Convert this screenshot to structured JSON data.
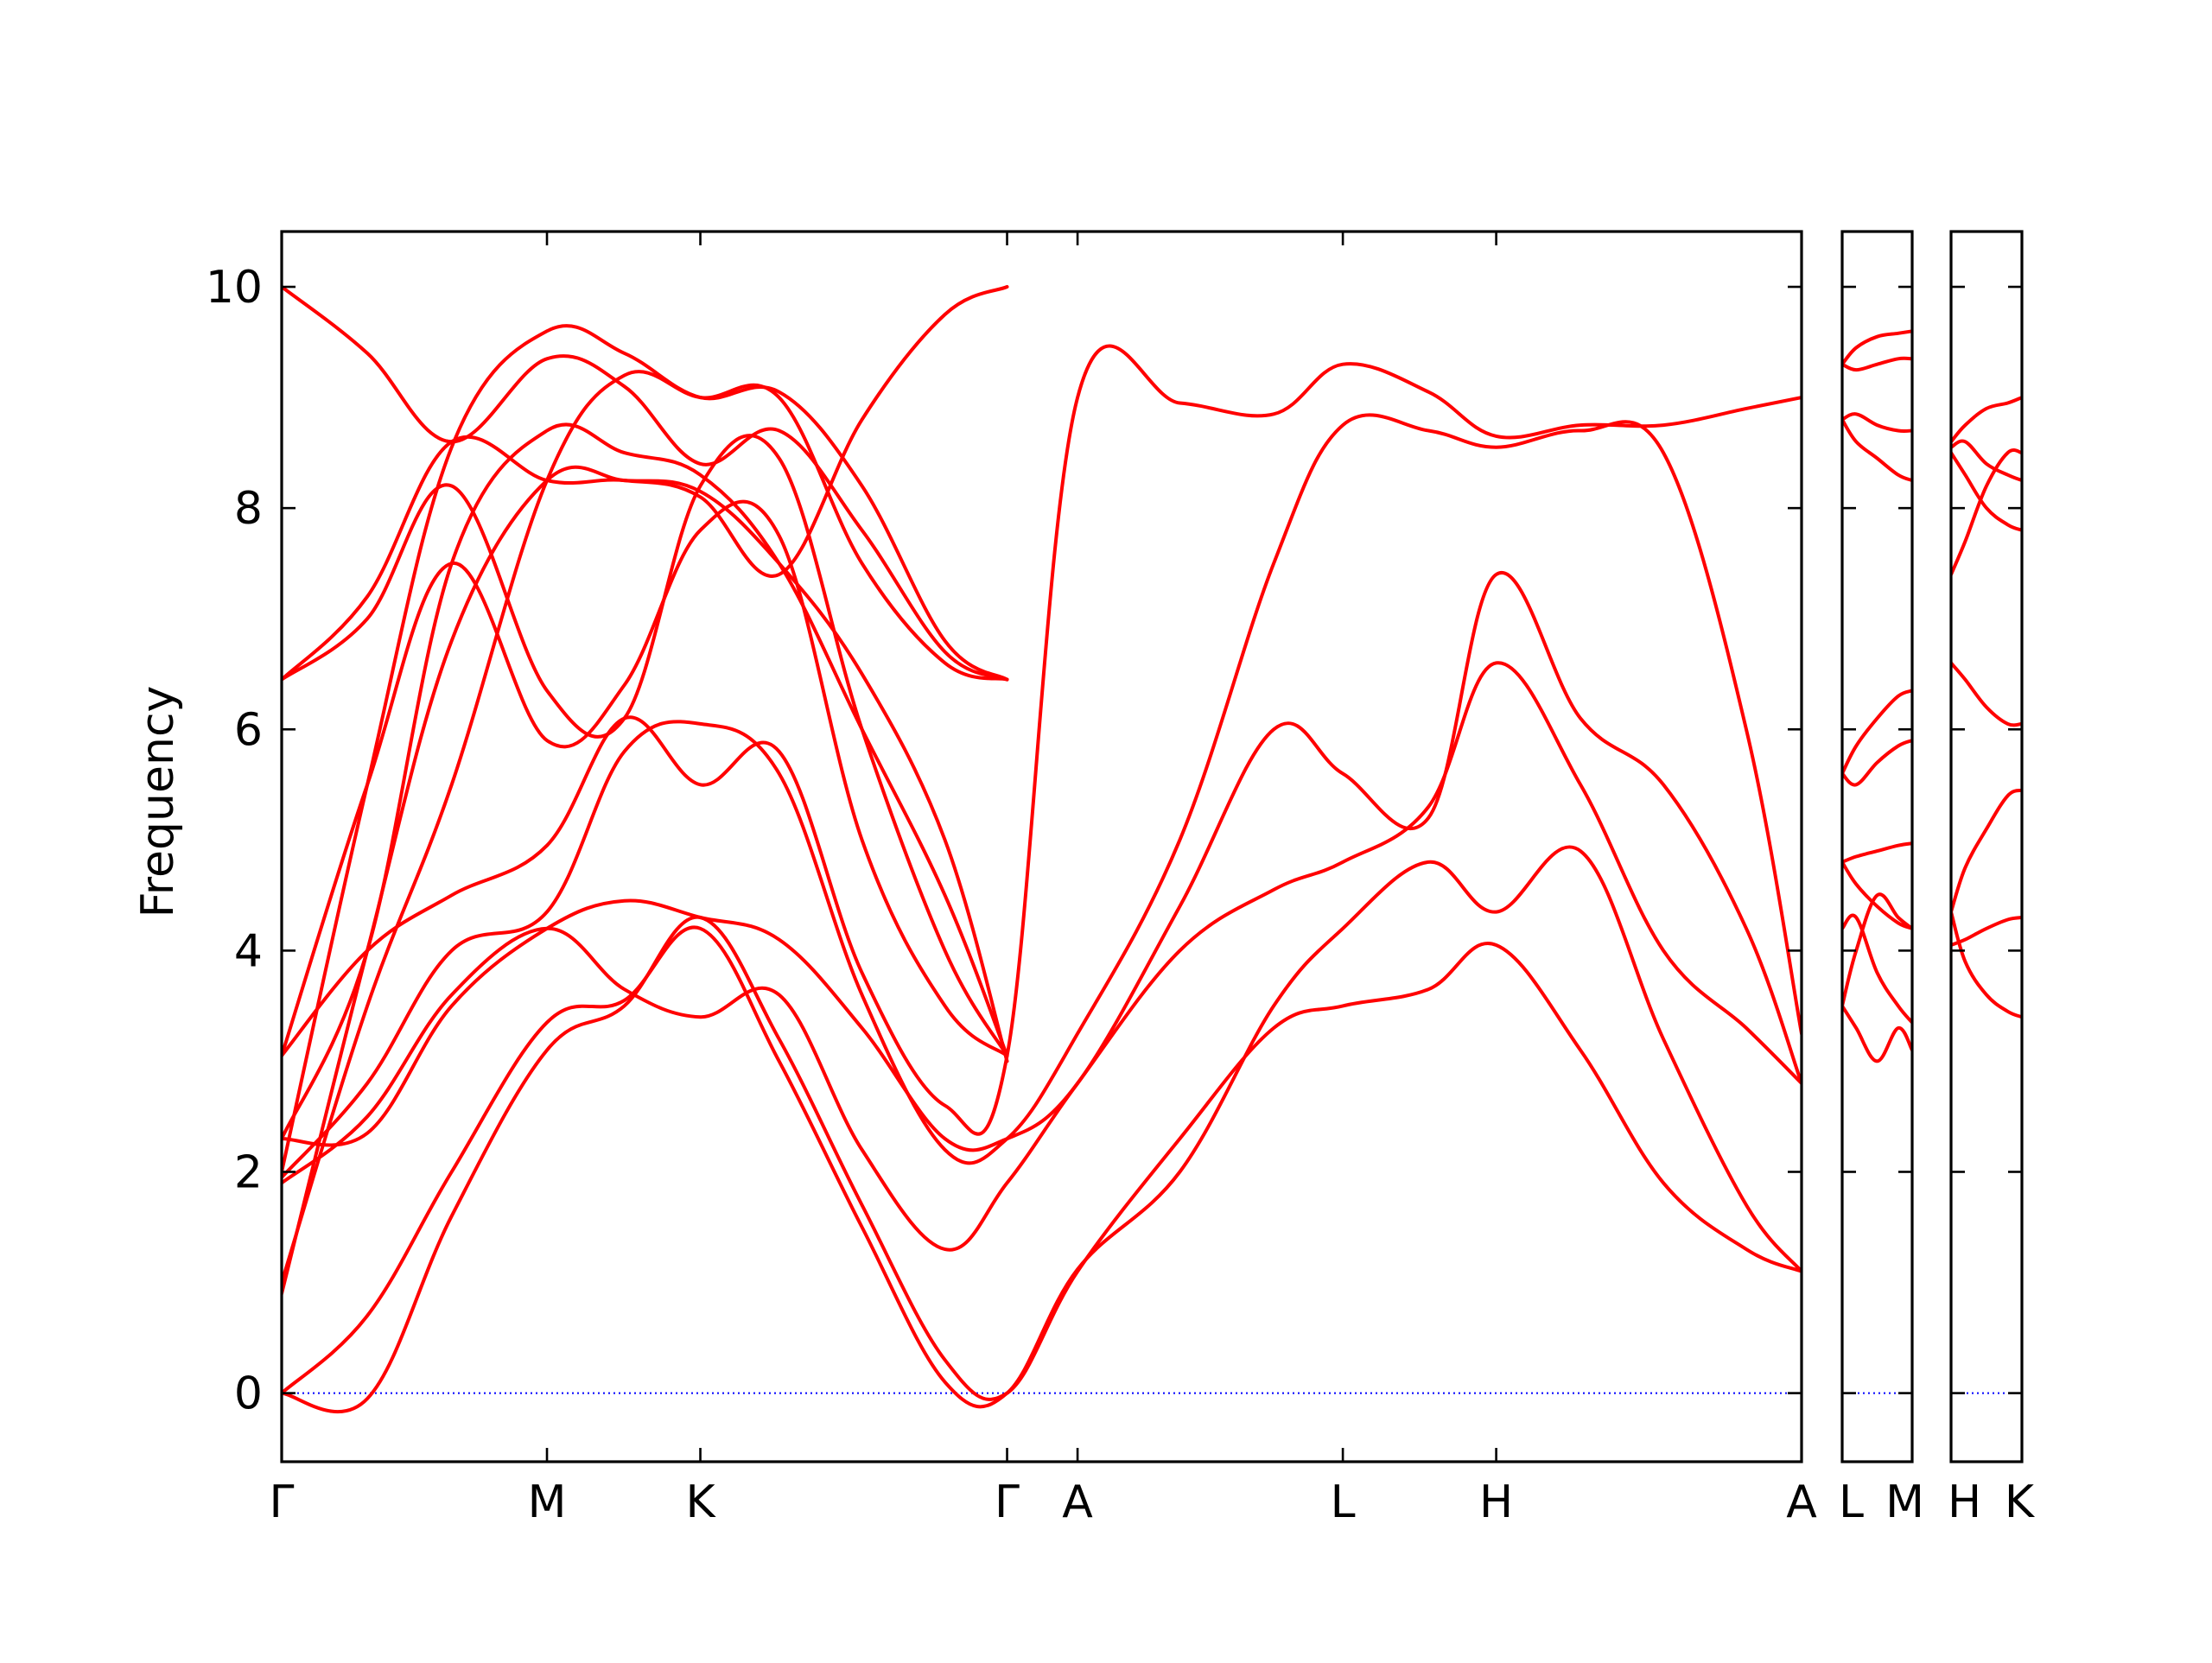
{
  "chart_data": {
    "type": "line",
    "ylabel": "Frequency",
    "ylim": [
      -0.62,
      10.5
    ],
    "yticks": [
      0,
      2,
      4,
      6,
      8,
      10
    ],
    "line_color": "#ff0000",
    "zero_line_color": "#0000ff",
    "grid": false,
    "legend": "none",
    "panels": [
      {
        "xlim": [
          0,
          1100
        ],
        "labels": [
          {
            "x": 0,
            "text": "Γ"
          },
          {
            "x": 192,
            "text": "M"
          },
          {
            "x": 303,
            "text": "K"
          },
          {
            "x": 525,
            "text": "Γ"
          },
          {
            "x": 576,
            "text": "A"
          },
          {
            "x": 768,
            "text": "L"
          },
          {
            "x": 879,
            "text": "H"
          },
          {
            "x": 1100,
            "text": "A"
          }
        ],
        "series": [
          {
            "x": [
              0,
              62,
              123,
              192,
              248,
              303,
              360,
              420,
              480,
              525,
              576,
              650,
              718,
              768,
              830,
              879,
              940,
              1000,
              1060,
              1100
            ],
            "y": [
              0,
              -0.05,
              1.6,
              3.1,
              3.5,
              4.3,
              3.2,
              1.7,
              0.3,
              0,
              1.1,
              2.3,
              3.3,
              3.5,
              3.65,
              4.05,
              3.1,
              1.9,
              1.3,
              1.1
            ]
          },
          {
            "x": [
              0,
              62,
              123,
              192,
              248,
              303,
              360,
              420,
              480,
              525,
              576,
              650,
              718,
              768,
              830,
              879,
              940,
              1000,
              1060,
              1100
            ],
            "y": [
              0,
              0.7,
              2.0,
              3.35,
              3.55,
              4.2,
              3.0,
              1.5,
              0.1,
              0,
              1.12,
              2.0,
              3.5,
              4.2,
              4.8,
              4.35,
              4.9,
              3.2,
              1.7,
              1.1
            ]
          },
          {
            "x": [
              0,
              62,
              123,
              192,
              248,
              303,
              360,
              420,
              480,
              525,
              576,
              650,
              718,
              768,
              830,
              879,
              940,
              1000,
              1060,
              1100
            ],
            "y": [
              1.9,
              2.5,
              3.6,
              4.2,
              3.65,
              3.4,
              3.6,
              2.2,
              1.3,
              1.9,
              2.8,
              4.0,
              4.55,
              4.8,
              5.3,
              6.6,
              5.5,
              4.0,
              3.3,
              2.8
            ]
          },
          {
            "x": [
              0,
              62,
              123,
              192,
              248,
              303,
              360,
              420,
              480,
              525,
              576,
              650,
              718,
              768,
              830,
              879,
              940,
              1000,
              1060,
              1100
            ],
            "y": [
              2.3,
              2.35,
              3.5,
              4.2,
              4.45,
              4.3,
              4.1,
              3.3,
              2.3,
              2.3,
              2.8,
              4.4,
              6.0,
              5.6,
              5.2,
              7.4,
              6.1,
              5.5,
              4.2,
              2.8
            ]
          },
          {
            "x": [
              0,
              62,
              123,
              192,
              248,
              303,
              360,
              420,
              480,
              525,
              576,
              650,
              718,
              768,
              830,
              879,
              940,
              1000,
              1060,
              1100
            ],
            "y": [
              1.95,
              2.8,
              4.0,
              4.35,
              5.8,
              6.05,
              5.6,
              3.6,
              2.2,
              2.3,
              3.25,
              5.0,
              7.5,
              8.75,
              8.7,
              8.55,
              8.7,
              8.5,
              6.0,
              3.25
            ]
          },
          {
            "x": [
              0,
              62,
              123,
              192,
              248,
              303,
              360,
              420,
              480,
              525,
              576,
              650,
              718,
              768,
              830,
              879,
              940,
              1000,
              1060,
              1100
            ],
            "y": [
              3.05,
              4.0,
              4.5,
              4.95,
              6.1,
              5.5,
              5.8,
              3.8,
              2.6,
              3.05,
              9.0,
              8.95,
              8.85,
              9.3,
              9.05,
              8.65,
              8.75,
              8.75,
              8.9,
              9.0
            ]
          },
          {
            "x": [
              0,
              62,
              123,
              192,
              248,
              303,
              360,
              420,
              480,
              525
            ],
            "y": [
              3.05,
              5.5,
              7.5,
              5.9,
              6.4,
              7.8,
              7.75,
              5.0,
              3.5,
              3.05
            ]
          },
          {
            "x": [
              0,
              62,
              123,
              192,
              248,
              303,
              360,
              420,
              480,
              525
            ],
            "y": [
              6.45,
              7.0,
              8.2,
              6.35,
              6.1,
              8.2,
              8.45,
              6.0,
              4.0,
              3.05
            ]
          },
          {
            "x": [
              0,
              62,
              123,
              192,
              248,
              303,
              360,
              420,
              480,
              525
            ],
            "y": [
              6.45,
              7.2,
              8.6,
              8.25,
              8.25,
              8.1,
              7.4,
              8.8,
              9.75,
              10.0
            ]
          },
          {
            "x": [
              0,
              62,
              123,
              192,
              248,
              303,
              360,
              420,
              480,
              525
            ],
            "y": [
              10.0,
              9.4,
              8.6,
              9.35,
              9.1,
              8.4,
              8.7,
              7.8,
              6.7,
              6.45
            ]
          },
          {
            "x": [
              0,
              62,
              123,
              192,
              248,
              303,
              360,
              420,
              480,
              525
            ],
            "y": [
              2.3,
              4.0,
              7.5,
              8.7,
              8.5,
              8.3,
              7.5,
              6.0,
              4.5,
              3.05
            ]
          },
          {
            "x": [
              0,
              62,
              123,
              192,
              248,
              303,
              360,
              420,
              480,
              525
            ],
            "y": [
              0.9,
              4.0,
              6.8,
              8.25,
              8.25,
              8.15,
              7.5,
              6.5,
              5.0,
              3.0
            ]
          },
          {
            "x": [
              0,
              62,
              123,
              192,
              248,
              303,
              360,
              420,
              480,
              525
            ],
            "y": [
              1.0,
              3.5,
              5.5,
              8.25,
              9.2,
              9.0,
              9.0,
              7.5,
              6.6,
              6.45
            ]
          },
          {
            "x": [
              0,
              62,
              123,
              192,
              248,
              303,
              360,
              420,
              480,
              525
            ],
            "y": [
              2.0,
              5.5,
              8.55,
              9.6,
              9.4,
              9.0,
              9.05,
              8.2,
              6.8,
              6.45
            ]
          }
        ]
      },
      {
        "xlim": [
          0,
          1
        ],
        "labels": [
          {
            "x": 0,
            "text": "L"
          },
          {
            "x": 1,
            "text": "M"
          }
        ],
        "series": [
          {
            "x": [
              0,
              0.2,
              0.5,
              0.8,
              1
            ],
            "y": [
              3.5,
              3.3,
              3.0,
              3.3,
              3.1
            ]
          },
          {
            "x": [
              0,
              0.2,
              0.5,
              0.8,
              1
            ],
            "y": [
              4.2,
              4.3,
              3.8,
              3.5,
              3.35
            ]
          },
          {
            "x": [
              0,
              0.2,
              0.5,
              0.8,
              1
            ],
            "y": [
              3.5,
              4.0,
              4.5,
              4.3,
              4.2
            ]
          },
          {
            "x": [
              0,
              0.2,
              0.5,
              0.8,
              1
            ],
            "y": [
              4.8,
              4.6,
              4.4,
              4.25,
              4.2
            ]
          },
          {
            "x": [
              0,
              0.2,
              0.5,
              0.8,
              1
            ],
            "y": [
              4.8,
              4.85,
              4.9,
              4.95,
              4.97
            ]
          },
          {
            "x": [
              0,
              0.2,
              0.5,
              0.8,
              1
            ],
            "y": [
              5.6,
              5.5,
              5.7,
              5.85,
              5.9
            ]
          },
          {
            "x": [
              0,
              0.2,
              0.5,
              0.8,
              1
            ],
            "y": [
              5.6,
              5.85,
              6.1,
              6.3,
              6.35
            ]
          },
          {
            "x": [
              0,
              0.2,
              0.5,
              0.8,
              1
            ],
            "y": [
              8.8,
              8.6,
              8.45,
              8.3,
              8.25
            ]
          },
          {
            "x": [
              0,
              0.2,
              0.5,
              0.8,
              1
            ],
            "y": [
              8.8,
              8.85,
              8.75,
              8.7,
              8.7
            ]
          },
          {
            "x": [
              0,
              0.2,
              0.5,
              0.8,
              1
            ],
            "y": [
              9.3,
              9.25,
              9.3,
              9.35,
              9.35
            ]
          },
          {
            "x": [
              0,
              0.2,
              0.5,
              0.8,
              1
            ],
            "y": [
              9.3,
              9.45,
              9.55,
              9.58,
              9.6
            ]
          }
        ]
      },
      {
        "xlim": [
          0,
          1
        ],
        "labels": [
          {
            "x": 0,
            "text": "H"
          },
          {
            "x": 1,
            "text": "K"
          }
        ],
        "series": [
          {
            "x": [
              0,
              0.2,
              0.5,
              0.8,
              1
            ],
            "y": [
              4.05,
              4.1,
              4.2,
              4.28,
              4.3
            ]
          },
          {
            "x": [
              0,
              0.2,
              0.5,
              0.8,
              1
            ],
            "y": [
              4.35,
              3.9,
              3.6,
              3.45,
              3.4
            ]
          },
          {
            "x": [
              0,
              0.2,
              0.5,
              0.8,
              1
            ],
            "y": [
              4.35,
              4.75,
              5.1,
              5.4,
              5.45
            ]
          },
          {
            "x": [
              0,
              0.2,
              0.5,
              0.8,
              1
            ],
            "y": [
              6.6,
              6.45,
              6.2,
              6.05,
              6.05
            ]
          },
          {
            "x": [
              0,
              0.2,
              0.5,
              0.8,
              1
            ],
            "y": [
              7.4,
              7.7,
              8.2,
              8.5,
              8.5
            ]
          },
          {
            "x": [
              0,
              0.2,
              0.5,
              0.8,
              1
            ],
            "y": [
              8.5,
              8.3,
              8.0,
              7.85,
              7.8
            ]
          },
          {
            "x": [
              0,
              0.2,
              0.5,
              0.8,
              1
            ],
            "y": [
              8.55,
              8.6,
              8.4,
              8.3,
              8.25
            ]
          },
          {
            "x": [
              0,
              0.2,
              0.5,
              0.8,
              1
            ],
            "y": [
              8.6,
              8.75,
              8.9,
              8.95,
              9.0
            ]
          }
        ]
      }
    ]
  }
}
